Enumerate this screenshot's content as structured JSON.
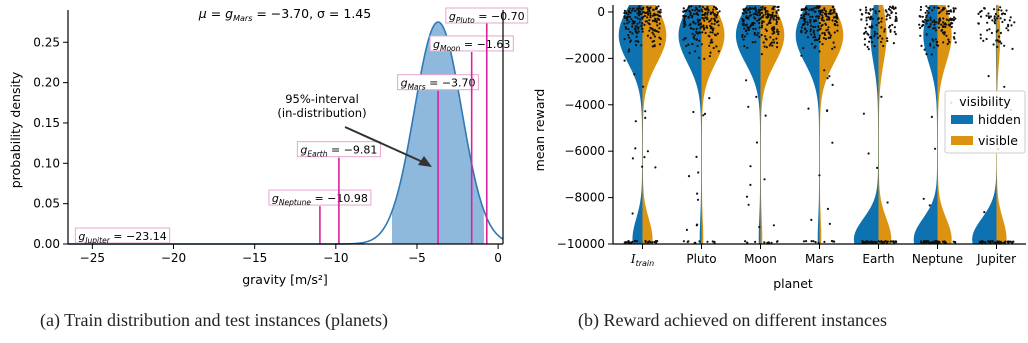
{
  "captions": {
    "a": "(a) Train distribution and test instances (planets)",
    "b": "(b) Reward achieved on different instances"
  },
  "chart_data": [
    {
      "type": "area",
      "title": "μ = g_Mars = −3.70, σ = 1.45",
      "title_parts": {
        "mu": "μ",
        "g": "g",
        "sub": "Mars",
        "value": " = −3.70, σ = 1.45"
      },
      "xlabel": "gravity [m/s²]",
      "ylabel": "probability density",
      "xlim": [
        -26.5,
        0.3
      ],
      "ylim": [
        0,
        0.29
      ],
      "xticks": [
        -25,
        -20,
        -15,
        -10,
        -5,
        0
      ],
      "yticks": [
        0.0,
        0.05,
        0.1,
        0.15,
        0.2,
        0.25
      ],
      "ytick_labels": [
        "0.00",
        "0.05",
        "0.10",
        "0.15",
        "0.20",
        "0.25"
      ],
      "distribution": {
        "mu": -3.7,
        "sigma": 1.45
      },
      "interval": [
        -6.54,
        -0.86
      ],
      "interval_annotation": [
        "95%-interval",
        "(in-distribution)"
      ],
      "curve_color": "#2f79b5",
      "fill_color": "#8fb9dc",
      "line_color": "#d6249f",
      "planet_lines": [
        {
          "planet": "Jupiter",
          "g": -23.14,
          "label_g": "g",
          "label_sub": "Jupiter",
          "label_value": " = −23.14",
          "line_top": 0.0
        },
        {
          "planet": "Neptune",
          "g": -10.98,
          "label_g": "g",
          "label_sub": "Neptune",
          "label_value": " = −10.98",
          "line_top": 0.047
        },
        {
          "planet": "Earth",
          "g": -9.81,
          "label_g": "g",
          "label_sub": "Earth",
          "label_value": " = −9.81",
          "line_top": 0.107
        },
        {
          "planet": "Mars",
          "g": -3.7,
          "label_g": "g",
          "label_sub": "Mars",
          "label_value": " = −3.70",
          "line_top": 0.19
        },
        {
          "planet": "Moon",
          "g": -1.63,
          "label_g": "g",
          "label_sub": "Moon",
          "label_value": " = −1.63",
          "line_top": 0.238
        },
        {
          "planet": "Pluto",
          "g": -0.7,
          "label_g": "g",
          "label_sub": "Pluto",
          "label_value": " = −0.70",
          "line_top": 0.3
        }
      ]
    },
    {
      "type": "violin",
      "xlabel": "planet",
      "ylabel": "mean reward",
      "ylim": [
        -10000,
        300
      ],
      "yticks": [
        0,
        -2000,
        -4000,
        -6000,
        -8000,
        -10000
      ],
      "ytick_labels": [
        "0",
        "−2000",
        "−4000",
        "−6000",
        "−8000",
        "−10000"
      ],
      "categories": [
        "I_train",
        "Pluto",
        "Moon",
        "Mars",
        "Earth",
        "Neptune",
        "Jupiter"
      ],
      "category_labels": [
        {
          "main": "I",
          "sub": "train",
          "italic": true
        },
        {
          "main": "Pluto"
        },
        {
          "main": "Moon"
        },
        {
          "main": "Mars"
        },
        {
          "main": "Earth"
        },
        {
          "main": "Neptune"
        },
        {
          "main": "Jupiter"
        }
      ],
      "legend": {
        "title": "visibility",
        "placement": "center-right"
      },
      "series": [
        {
          "name": "hidden",
          "color": "#0f72b0",
          "side": "left",
          "top_mass": [
            0.85,
            0.82,
            0.88,
            0.85,
            0.28,
            0.5,
            0.02
          ],
          "bottom_mass": [
            0.35,
            0.05,
            0.05,
            0.05,
            0.88,
            0.85,
            0.88
          ]
        },
        {
          "name": "visible",
          "color": "#dd9312",
          "side": "right",
          "top_mass": [
            0.85,
            0.82,
            0.85,
            0.85,
            0.28,
            0.5,
            0.12
          ],
          "bottom_mass": [
            0.35,
            0.05,
            0.05,
            0.05,
            0.45,
            0.5,
            0.35
          ]
        }
      ]
    }
  ]
}
